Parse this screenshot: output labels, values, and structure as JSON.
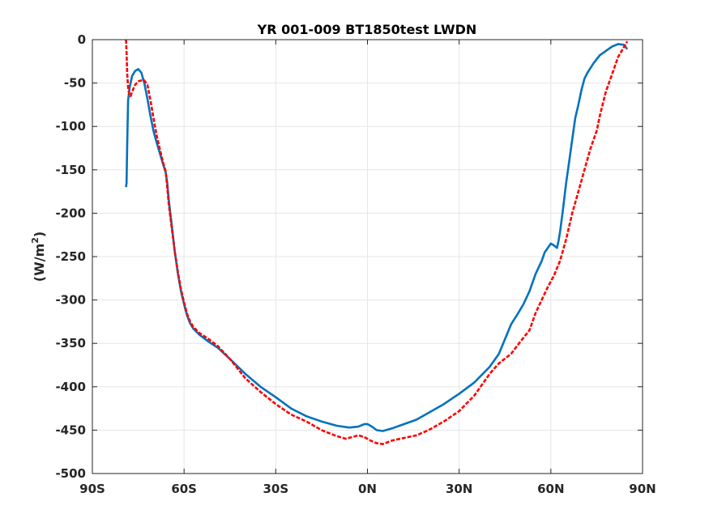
{
  "chart_data": {
    "type": "line",
    "title": "YR 001-009 BT1850test LWDN",
    "xlabel": "",
    "ylabel": "(W/m",
    "ylabel_superscript": "2",
    "ylabel_suffix": ")",
    "xlim": [
      -90,
      90
    ],
    "ylim": [
      -500,
      0
    ],
    "grid": true,
    "x_ticks": [
      {
        "value": -90,
        "label": "90S"
      },
      {
        "value": -60,
        "label": "60S"
      },
      {
        "value": -30,
        "label": "30S"
      },
      {
        "value": 0,
        "label": "0N"
      },
      {
        "value": 30,
        "label": "30N"
      },
      {
        "value": 60,
        "label": "60N"
      },
      {
        "value": 90,
        "label": "90N"
      }
    ],
    "y_ticks": [
      {
        "value": 0,
        "label": "0"
      },
      {
        "value": -50,
        "label": "-50"
      },
      {
        "value": -100,
        "label": "-100"
      },
      {
        "value": -150,
        "label": "-150"
      },
      {
        "value": -200,
        "label": "-200"
      },
      {
        "value": -250,
        "label": "-250"
      },
      {
        "value": -300,
        "label": "-300"
      },
      {
        "value": -350,
        "label": "-350"
      },
      {
        "value": -400,
        "label": "-400"
      },
      {
        "value": -450,
        "label": "-450"
      },
      {
        "value": -500,
        "label": "-500"
      }
    ],
    "series": [
      {
        "color": "#0072bd",
        "style": "solid",
        "points": [
          [
            -79,
            -170
          ],
          [
            -78.8,
            -165
          ],
          [
            -78.6,
            -120
          ],
          [
            -78.3,
            -70
          ],
          [
            -77.8,
            -55
          ],
          [
            -77,
            -42
          ],
          [
            -76,
            -36
          ],
          [
            -75,
            -34
          ],
          [
            -74,
            -38
          ],
          [
            -73,
            -50
          ],
          [
            -72,
            -68
          ],
          [
            -71,
            -88
          ],
          [
            -70,
            -105
          ],
          [
            -69,
            -118
          ],
          [
            -68,
            -130
          ],
          [
            -67,
            -142
          ],
          [
            -66,
            -153
          ],
          [
            -65.5,
            -165
          ],
          [
            -65,
            -185
          ],
          [
            -64,
            -215
          ],
          [
            -63,
            -245
          ],
          [
            -62,
            -270
          ],
          [
            -61,
            -290
          ],
          [
            -60,
            -305
          ],
          [
            -59,
            -318
          ],
          [
            -58,
            -327
          ],
          [
            -57,
            -333
          ],
          [
            -55,
            -340
          ],
          [
            -52,
            -348
          ],
          [
            -49,
            -355
          ],
          [
            -45,
            -368
          ],
          [
            -40,
            -385
          ],
          [
            -35,
            -400
          ],
          [
            -30,
            -412
          ],
          [
            -25,
            -425
          ],
          [
            -20,
            -434
          ],
          [
            -15,
            -440
          ],
          [
            -10,
            -445
          ],
          [
            -6,
            -447
          ],
          [
            -3,
            -446
          ],
          [
            -1,
            -443
          ],
          [
            0,
            -443
          ],
          [
            1.5,
            -446
          ],
          [
            3,
            -450
          ],
          [
            5,
            -451
          ],
          [
            8,
            -448
          ],
          [
            12,
            -443
          ],
          [
            16,
            -438
          ],
          [
            20,
            -430
          ],
          [
            25,
            -420
          ],
          [
            30,
            -408
          ],
          [
            35,
            -395
          ],
          [
            40,
            -377
          ],
          [
            43,
            -362
          ],
          [
            45,
            -345
          ],
          [
            47,
            -328
          ],
          [
            49,
            -317
          ],
          [
            51,
            -305
          ],
          [
            53,
            -290
          ],
          [
            55,
            -270
          ],
          [
            57,
            -255
          ],
          [
            58,
            -245
          ],
          [
            59,
            -240
          ],
          [
            60,
            -235
          ],
          [
            61,
            -237
          ],
          [
            62,
            -240
          ],
          [
            62.5,
            -232
          ],
          [
            63,
            -222
          ],
          [
            64,
            -195
          ],
          [
            65,
            -165
          ],
          [
            66,
            -140
          ],
          [
            67,
            -115
          ],
          [
            68,
            -90
          ],
          [
            69,
            -75
          ],
          [
            70,
            -58
          ],
          [
            71,
            -45
          ],
          [
            72,
            -38
          ],
          [
            74,
            -27
          ],
          [
            76,
            -18
          ],
          [
            78,
            -13
          ],
          [
            80,
            -8
          ],
          [
            82,
            -5
          ],
          [
            84,
            -6
          ],
          [
            85,
            -11
          ]
        ]
      },
      {
        "color": "#ff0000",
        "style": "dashed",
        "points": [
          [
            -79,
            0
          ],
          [
            -78.8,
            -15
          ],
          [
            -78.6,
            -40
          ],
          [
            -78.3,
            -55
          ],
          [
            -78,
            -62
          ],
          [
            -77.5,
            -65
          ],
          [
            -77,
            -60
          ],
          [
            -76,
            -52
          ],
          [
            -75,
            -48
          ],
          [
            -74,
            -47
          ],
          [
            -73,
            -47
          ],
          [
            -72,
            -52
          ],
          [
            -71,
            -70
          ],
          [
            -70,
            -90
          ],
          [
            -69,
            -110
          ],
          [
            -68,
            -125
          ],
          [
            -67,
            -140
          ],
          [
            -66,
            -152
          ],
          [
            -65.5,
            -170
          ],
          [
            -65,
            -190
          ],
          [
            -64,
            -218
          ],
          [
            -63,
            -245
          ],
          [
            -62,
            -268
          ],
          [
            -61,
            -288
          ],
          [
            -60,
            -303
          ],
          [
            -59,
            -316
          ],
          [
            -58,
            -325
          ],
          [
            -57,
            -331
          ],
          [
            -55,
            -338
          ],
          [
            -52,
            -345
          ],
          [
            -49,
            -353
          ],
          [
            -45,
            -368
          ],
          [
            -40,
            -390
          ],
          [
            -35,
            -406
          ],
          [
            -30,
            -420
          ],
          [
            -25,
            -432
          ],
          [
            -20,
            -440
          ],
          [
            -15,
            -450
          ],
          [
            -10,
            -457
          ],
          [
            -7,
            -460
          ],
          [
            -5,
            -458
          ],
          [
            -3,
            -456
          ],
          [
            -1,
            -458
          ],
          [
            1,
            -462
          ],
          [
            3,
            -465
          ],
          [
            5,
            -466
          ],
          [
            8,
            -462
          ],
          [
            12,
            -459
          ],
          [
            16,
            -456
          ],
          [
            20,
            -450
          ],
          [
            25,
            -440
          ],
          [
            30,
            -428
          ],
          [
            35,
            -410
          ],
          [
            40,
            -385
          ],
          [
            43,
            -373
          ],
          [
            47,
            -362
          ],
          [
            50,
            -348
          ],
          [
            53,
            -335
          ],
          [
            55,
            -315
          ],
          [
            57,
            -300
          ],
          [
            59,
            -285
          ],
          [
            61,
            -272
          ],
          [
            63,
            -255
          ],
          [
            65,
            -230
          ],
          [
            67,
            -200
          ],
          [
            69,
            -175
          ],
          [
            71,
            -150
          ],
          [
            73,
            -125
          ],
          [
            75,
            -105
          ],
          [
            76,
            -88
          ],
          [
            78,
            -60
          ],
          [
            80,
            -40
          ],
          [
            82,
            -20
          ],
          [
            84,
            -8
          ],
          [
            85,
            -2
          ]
        ]
      }
    ]
  }
}
